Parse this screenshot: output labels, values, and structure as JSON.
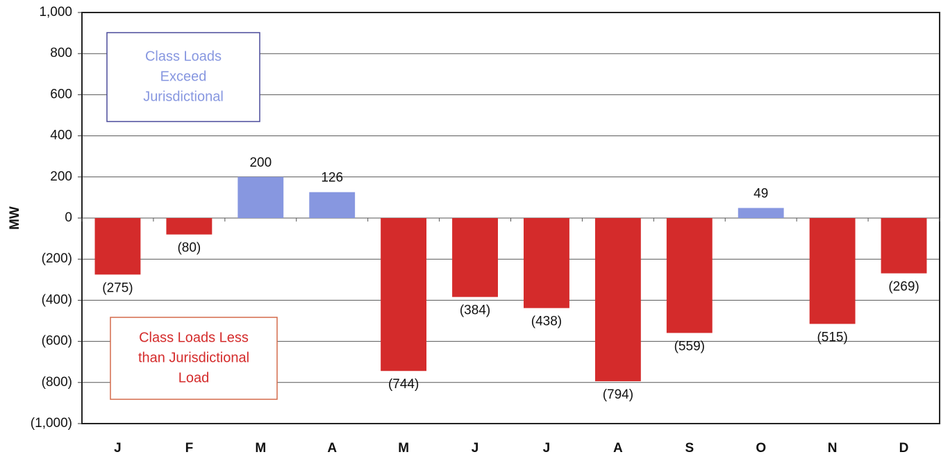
{
  "chart_data": {
    "type": "bar",
    "y_label": "MW",
    "categories": [
      "J",
      "F",
      "M",
      "A",
      "M",
      "J",
      "J",
      "A",
      "S",
      "O",
      "N",
      "D"
    ],
    "values": [
      -275,
      -80,
      200,
      126,
      -744,
      -384,
      -438,
      -794,
      -559,
      49,
      -515,
      -269
    ],
    "value_labels": [
      "(275)",
      "(80)",
      "200",
      "126",
      "(744)",
      "(384)",
      "(438)",
      "(794)",
      "(559)",
      "49",
      "(515)",
      "(269)"
    ],
    "colors": [
      "#d42b2b",
      "#d42b2b",
      "#8797e0",
      "#8797e0",
      "#d42b2b",
      "#d42b2b",
      "#d42b2b",
      "#d42b2b",
      "#d42b2b",
      "#8797e0",
      "#d42b2b",
      "#d42b2b"
    ],
    "ylim": [
      -1000,
      1000
    ],
    "yticks": [
      {
        "value": -1000,
        "label": "(1,000)"
      },
      {
        "value": -800,
        "label": "(800)"
      },
      {
        "value": -600,
        "label": "(600)"
      },
      {
        "value": -400,
        "label": "(400)"
      },
      {
        "value": -200,
        "label": "(200)"
      },
      0,
      200,
      400,
      600,
      800,
      {
        "value": 1000,
        "label": "1,000"
      }
    ],
    "grid": true,
    "annotations": [
      {
        "lines": [
          "Class Loads",
          "Exceed",
          "Jurisdictional"
        ],
        "color": "#8797e0",
        "border": "#4a4a9a"
      },
      {
        "lines": [
          "Class Loads Less",
          "than Jurisdictional",
          "Load"
        ],
        "color": "#d42b2b",
        "border": "#d46a4a"
      }
    ]
  }
}
